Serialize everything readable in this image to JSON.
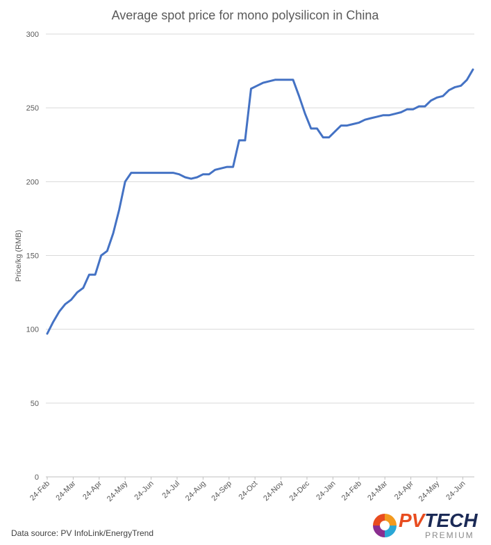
{
  "chart_data": {
    "type": "line",
    "title": "Average spot price for mono polysilicon in China",
    "xlabel": "",
    "ylabel": "Price/kg (RMB)",
    "ylim": [
      0,
      300
    ],
    "yticks": [
      0,
      50,
      100,
      150,
      200,
      250,
      300
    ],
    "grid": "horizontal",
    "legend": "none",
    "line_color": "#4472c4",
    "x_tick_labels": [
      "24-Feb",
      "24-Mar",
      "24-Apr",
      "24-May",
      "24-Jun",
      "24-Jul",
      "24-Aug",
      "24-Sep",
      "24-Oct",
      "24-Nov",
      "24-Dec",
      "24-Jan",
      "24-Feb",
      "24-Mar",
      "24-Apr",
      "24-May",
      "24-Jun"
    ],
    "series": [
      {
        "values": [
          97,
          105,
          112,
          117,
          120,
          125,
          128,
          137,
          137,
          150,
          153,
          165,
          181,
          200,
          206,
          206,
          206,
          206,
          206,
          206,
          206,
          206,
          205,
          203,
          202,
          203,
          205,
          205,
          208,
          209,
          210,
          210,
          228,
          228,
          263,
          265,
          267,
          268,
          269,
          269,
          269,
          269,
          258,
          246,
          236,
          236,
          230,
          230,
          234,
          238,
          238,
          239,
          240,
          242,
          243,
          244,
          245,
          245,
          246,
          247,
          249,
          249,
          251,
          251,
          255,
          257,
          258,
          262,
          264,
          265,
          269,
          276
        ]
      }
    ]
  },
  "footer": {
    "source": "Data source: PV InfoLink/EnergyTrend"
  },
  "logo": {
    "pv": "PV",
    "tech": "TECH",
    "sub": "PREMIUM"
  }
}
